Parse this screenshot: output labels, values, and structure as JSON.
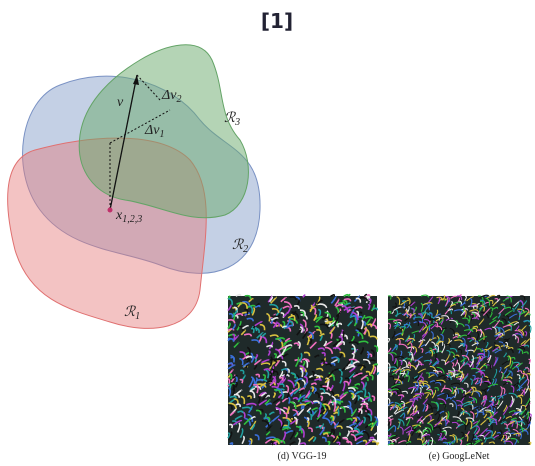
{
  "title": "[1]",
  "diagram": {
    "vector": "v",
    "delta_v2": {
      "base": "Δv",
      "sub": "2"
    },
    "delta_v1": {
      "base": "Δv",
      "sub": "1"
    },
    "point": {
      "base": "x",
      "sub": "1,2,3"
    },
    "regions": [
      {
        "base": "ℛ",
        "sub": "1"
      },
      {
        "base": "ℛ",
        "sub": "2"
      },
      {
        "base": "ℛ",
        "sub": "3"
      }
    ]
  },
  "figures": [
    {
      "caption": "(d) VGG-19"
    },
    {
      "caption": "(e) GoogLeNet"
    }
  ]
}
